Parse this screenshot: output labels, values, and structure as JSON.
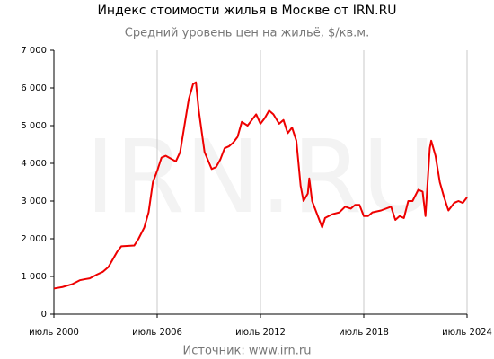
{
  "chart_data": {
    "type": "line",
    "title": "Индекс стоимости жилья в Москве от IRN.RU",
    "subtitle": "Средний уровень цен на жильё, $/кв.м.",
    "watermark": "IRN.RU",
    "source": "Источник: www.irn.ru",
    "grid": "x",
    "xlim": [
      "2000-07",
      "2024-07"
    ],
    "xticks": [
      {
        "value": "2000-07",
        "label": "июль 2000"
      },
      {
        "value": "2006-07",
        "label": "июль 2006"
      },
      {
        "value": "2012-07",
        "label": "июль 2012"
      },
      {
        "value": "2018-07",
        "label": "июль 2018"
      },
      {
        "value": "2024-07",
        "label": "июль 2024"
      }
    ],
    "ylim": [
      0,
      7000
    ],
    "yticks": [
      0,
      {
        "value": 1000,
        "label": "1 000"
      },
      {
        "value": 2000,
        "label": "2 000"
      },
      {
        "value": 3000,
        "label": "3 000"
      },
      {
        "value": 4000,
        "label": "4 000"
      },
      {
        "value": 5000,
        "label": "5 000"
      },
      {
        "value": 6000,
        "label": "6 000"
      },
      {
        "value": 7000,
        "label": "7 000"
      }
    ],
    "x": [
      "2000-07",
      "2001-01",
      "2001-08",
      "2002-01",
      "2002-05",
      "2002-08",
      "2003-01",
      "2003-05",
      "2003-09",
      "2003-12",
      "2004-03",
      "2004-06",
      "2005-03",
      "2005-06",
      "2005-10",
      "2006-01",
      "2006-04",
      "2006-07",
      "2006-10",
      "2007-01",
      "2007-08",
      "2007-11",
      "2008-02",
      "2008-05",
      "2008-08",
      "2008-10",
      "2008-12",
      "2009-04",
      "2009-09",
      "2009-12",
      "2010-03",
      "2010-06",
      "2010-09",
      "2010-12",
      "2011-03",
      "2011-06",
      "2011-10",
      "2012-01",
      "2012-04",
      "2012-07",
      "2012-10",
      "2013-01",
      "2013-04",
      "2013-08",
      "2013-11",
      "2014-02",
      "2014-05",
      "2014-08",
      "2014-11",
      "2015-01",
      "2015-04",
      "2015-05",
      "2015-07",
      "2015-10",
      "2016-02",
      "2016-04",
      "2016-09",
      "2017-02",
      "2017-06",
      "2017-10",
      "2018-01",
      "2018-04",
      "2018-07",
      "2018-10",
      "2019-01",
      "2019-07",
      "2020-02",
      "2020-05",
      "2020-08",
      "2020-11",
      "2021-02",
      "2021-05",
      "2021-09",
      "2021-12",
      "2022-02",
      "2022-05",
      "2022-06",
      "2022-09",
      "2022-12",
      "2023-03",
      "2023-06",
      "2023-10",
      "2024-01",
      "2024-04",
      "2024-07"
    ],
    "series": [
      {
        "name": "Индекс",
        "color": "#ee0000",
        "values": [
          680,
          720,
          800,
          900,
          930,
          950,
          1050,
          1120,
          1250,
          1450,
          1650,
          1800,
          1820,
          2000,
          2300,
          2700,
          3500,
          3800,
          4150,
          4200,
          4050,
          4300,
          5000,
          5700,
          6100,
          6150,
          5400,
          4300,
          3850,
          3900,
          4100,
          4400,
          4450,
          4550,
          4700,
          5100,
          5000,
          5150,
          5300,
          5050,
          5200,
          5400,
          5300,
          5050,
          5150,
          4800,
          4950,
          4600,
          3400,
          3000,
          3200,
          3600,
          3000,
          2700,
          2300,
          2550,
          2650,
          2700,
          2850,
          2800,
          2900,
          2900,
          2600,
          2600,
          2700,
          2750,
          2850,
          2500,
          2600,
          2550,
          3000,
          3000,
          3300,
          3250,
          2600,
          4400,
          4600,
          4200,
          3500,
          3100,
          2750,
          2950,
          3000,
          2950,
          3100
        ]
      }
    ]
  }
}
